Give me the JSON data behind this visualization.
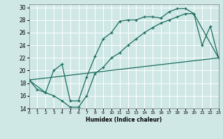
{
  "xlabel": "Humidex (Indice chaleur)",
  "xlim": [
    0,
    23
  ],
  "ylim": [
    14,
    30.5
  ],
  "xticks": [
    0,
    1,
    2,
    3,
    4,
    5,
    6,
    7,
    8,
    9,
    10,
    11,
    12,
    13,
    14,
    15,
    16,
    17,
    18,
    19,
    20,
    21,
    22,
    23
  ],
  "yticks": [
    14,
    16,
    18,
    20,
    22,
    24,
    26,
    28,
    30
  ],
  "bg_color": "#cfe8e5",
  "line_color": "#1a6b5e",
  "line1_x": [
    0,
    1,
    2,
    3,
    4,
    5,
    6,
    7,
    8,
    9,
    10,
    11,
    12,
    13,
    14,
    15,
    16,
    17,
    18,
    19,
    20,
    21,
    22,
    23
  ],
  "line1_y": [
    18.5,
    17.0,
    16.5,
    20.0,
    21.0,
    15.2,
    15.2,
    19.0,
    22.2,
    25.0,
    26.0,
    27.8,
    28.0,
    28.0,
    28.5,
    28.5,
    28.3,
    29.3,
    29.8,
    29.8,
    29.0,
    24.0,
    27.0,
    22.0
  ],
  "line2_x": [
    0,
    2,
    3,
    4,
    5,
    6,
    7,
    8,
    9,
    10,
    11,
    12,
    13,
    14,
    15,
    16,
    17,
    18,
    19,
    20,
    23
  ],
  "line2_y": [
    18.5,
    16.5,
    16.0,
    15.2,
    14.2,
    14.2,
    16.0,
    19.5,
    20.5,
    22.0,
    22.8,
    24.0,
    25.0,
    26.0,
    26.8,
    27.5,
    28.0,
    28.5,
    29.0,
    29.0,
    22.0
  ],
  "line3_x": [
    0,
    23
  ],
  "line3_y": [
    18.5,
    22.0
  ]
}
